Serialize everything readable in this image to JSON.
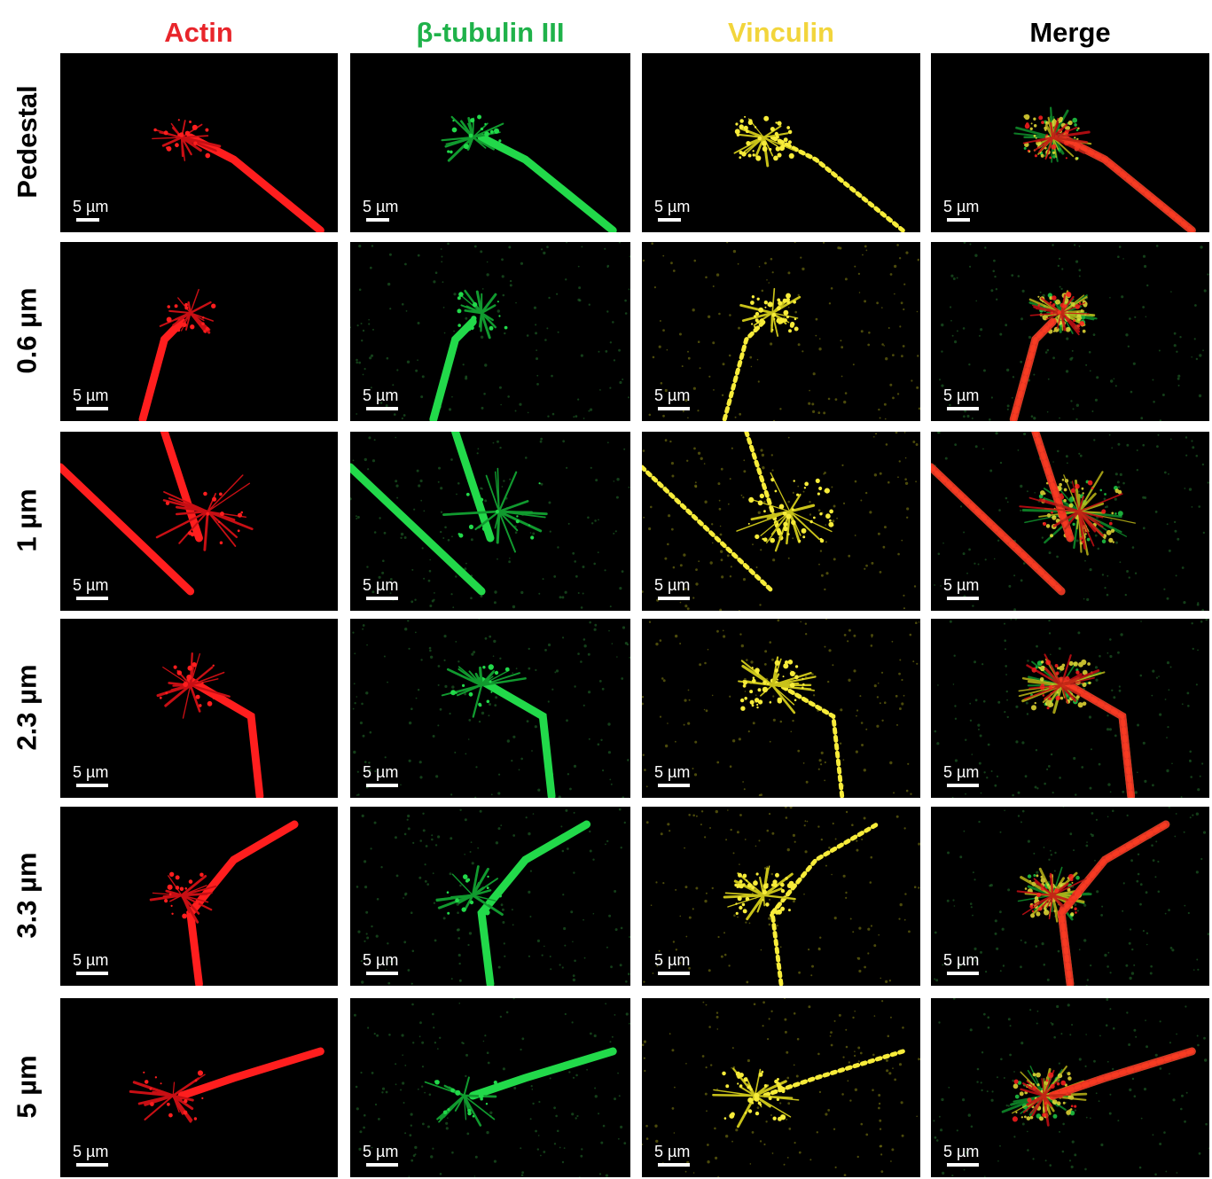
{
  "columns": [
    {
      "label": "Actin",
      "color": "#e8252b",
      "channel": "red"
    },
    {
      "label": "β-tubulin III",
      "color": "#1fb24a",
      "channel": "green"
    },
    {
      "label": "Vinculin",
      "color": "#f2d53c",
      "channel": "yellow"
    },
    {
      "label": "Merge",
      "color": "#000000",
      "channel": "merge"
    }
  ],
  "rows": [
    {
      "label": "Pedestal"
    },
    {
      "label": "0.6 µm"
    },
    {
      "label": "1 µm"
    },
    {
      "label": "2.3 µm"
    },
    {
      "label": "3.3 µm"
    },
    {
      "label": "5 µm"
    }
  ],
  "scalebar_label": "5 µm"
}
